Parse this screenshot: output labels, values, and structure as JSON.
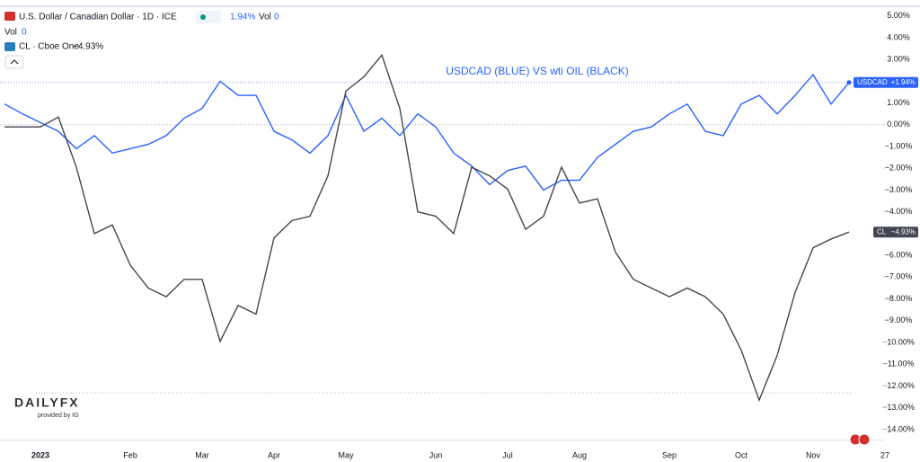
{
  "header": {
    "symbol": "U.S. Dollar / Canadian Dollar · 1D · ICE",
    "change": "1.94%",
    "vol_label": "Vol",
    "vol_value": "0",
    "vol2_label": "Vol",
    "vol2_value": "0",
    "compare": "CL · Cboe One",
    "compare_change": "−4.93%"
  },
  "logo": {
    "brand": "DAILYFX",
    "sub": "provided by IG"
  },
  "chart_data": {
    "type": "line",
    "annotation": "USDCAD (BLUE) VS wti OIL (BLACK)",
    "categories": [
      null,
      null,
      "2023",
      null,
      null,
      null,
      null,
      "Feb",
      null,
      null,
      null,
      "Mar",
      null,
      null,
      null,
      "Apr",
      null,
      null,
      null,
      "May",
      null,
      null,
      null,
      null,
      "Jun",
      null,
      null,
      null,
      "Jul",
      null,
      null,
      null,
      "Aug",
      null,
      null,
      null,
      null,
      "Sep",
      null,
      null,
      null,
      "Oct",
      null,
      null,
      null,
      "Nov",
      null,
      null,
      null,
      "27"
    ],
    "series": [
      {
        "name": "USDCAD",
        "color": "#2962ff",
        "last_label": "+1.94%",
        "values": [
          0.95,
          0.5,
          0.1,
          -0.3,
          -1.1,
          -0.5,
          -1.3,
          -1.1,
          -0.9,
          -0.5,
          0.3,
          0.75,
          2.0,
          1.35,
          1.35,
          -0.3,
          -0.7,
          -1.3,
          -0.5,
          1.35,
          -0.3,
          0.3,
          -0.5,
          0.5,
          -0.1,
          -1.3,
          -1.9,
          -2.75,
          -2.1,
          -1.9,
          -3.0,
          -2.55,
          -2.55,
          -1.5,
          -0.9,
          -0.3,
          -0.1,
          0.5,
          0.95,
          -0.3,
          -0.5,
          0.95,
          1.35,
          0.5,
          1.35,
          2.3,
          0.95,
          1.94,
          null,
          null
        ]
      },
      {
        "name": "CL",
        "color": "#434651",
        "last_label": "−4.93%",
        "values": [
          -0.1,
          -0.1,
          -0.1,
          0.35,
          -1.95,
          -5.0,
          -4.6,
          -6.45,
          -7.5,
          -7.9,
          -7.1,
          -7.1,
          -9.95,
          -8.3,
          -8.7,
          -5.2,
          -4.4,
          -4.2,
          -2.35,
          1.55,
          2.2,
          3.2,
          0.75,
          -4.0,
          -4.2,
          -5.0,
          -1.95,
          -2.35,
          -2.95,
          -4.8,
          -4.2,
          -1.95,
          -3.6,
          -3.4,
          -5.85,
          -7.1,
          -7.5,
          -7.9,
          -7.5,
          -7.9,
          -8.7,
          -10.35,
          -12.65,
          -10.6,
          -7.7,
          -5.65,
          -5.25,
          -4.93,
          null,
          null
        ]
      }
    ],
    "ylim": [
      -14.5,
      5.4
    ],
    "yticks": [
      {
        "value": 5,
        "label": "5.00%"
      },
      {
        "value": 4,
        "label": "4.00%"
      },
      {
        "value": 3,
        "label": "3.00%"
      },
      {
        "value": 2,
        "label": "2.00%"
      },
      {
        "value": 1,
        "label": "1.00%"
      },
      {
        "value": 0,
        "label": "0.00%"
      },
      {
        "value": -1,
        "label": "−1.00%"
      },
      {
        "value": -2,
        "label": "−2.00%"
      },
      {
        "value": -3,
        "label": "−3.00%"
      },
      {
        "value": -4,
        "label": "−4.00%"
      },
      {
        "value": -5,
        "label": "−5.00%"
      },
      {
        "value": -6,
        "label": "−6.00%"
      },
      {
        "value": -7,
        "label": "−7.00%"
      },
      {
        "value": -8,
        "label": "−8.00%"
      },
      {
        "value": -9,
        "label": "−9.00%"
      },
      {
        "value": -10,
        "label": "−10.00%"
      },
      {
        "value": -11,
        "label": "−11.00%"
      },
      {
        "value": -12,
        "label": "−12.00%"
      },
      {
        "value": -13,
        "label": "−13.00%"
      },
      {
        "value": -14,
        "label": "−14.00%"
      }
    ],
    "zero_line": 0
  }
}
